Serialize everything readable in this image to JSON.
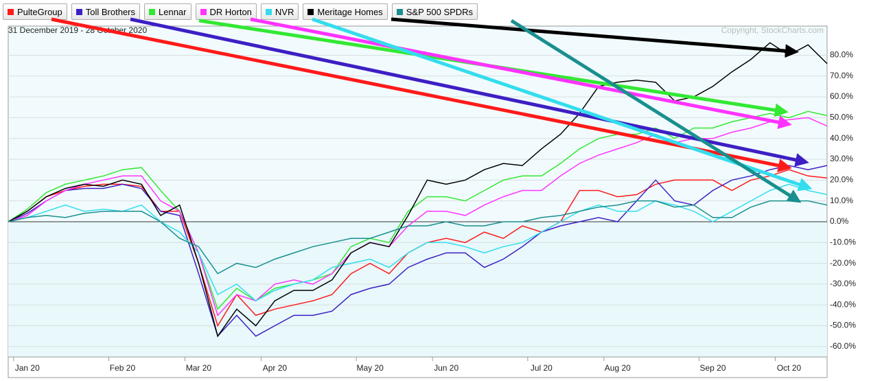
{
  "chart_data": {
    "type": "line",
    "subtitle": "31 December 2019 - 28 October 2020",
    "annotations": [
      "Copyright, StockCharts.com"
    ],
    "categories": [
      null,
      "Jan 20",
      null,
      null,
      null,
      null,
      "Feb 20",
      null,
      null,
      null,
      "Mar 20",
      null,
      null,
      null,
      "Apr 20",
      null,
      null,
      null,
      null,
      "May 20",
      null,
      null,
      null,
      "Jun 20",
      null,
      null,
      null,
      null,
      "Jul 20",
      null,
      null,
      null,
      "Aug 20",
      null,
      null,
      null,
      null,
      "Sep 20",
      null,
      null,
      null,
      "Oct 20",
      null,
      null
    ],
    "series": [
      {
        "name": "PulteGroup",
        "color": "#ff1a1a",
        "values": [
          0,
          5,
          12,
          15,
          17,
          18,
          18,
          17,
          5,
          5,
          -20,
          -50,
          -35,
          -45,
          -42,
          -40,
          -38,
          -35,
          -25,
          -20,
          -25,
          -15,
          -10,
          -8,
          -10,
          -5,
          -8,
          -2,
          -5,
          0,
          15,
          15,
          12,
          13,
          18,
          20,
          20,
          20,
          15,
          20,
          22,
          25,
          22,
          21
        ]
      },
      {
        "name": "Toll Brothers",
        "color": "#3d1fc4",
        "values": [
          0,
          4,
          10,
          15,
          16,
          16,
          18,
          16,
          5,
          3,
          -25,
          -55,
          -45,
          -55,
          -50,
          -45,
          -45,
          -43,
          -35,
          -32,
          -30,
          -22,
          -18,
          -15,
          -15,
          -22,
          -18,
          -12,
          -5,
          -2,
          0,
          2,
          0,
          10,
          20,
          10,
          8,
          15,
          20,
          22,
          25,
          27,
          25,
          27
        ]
      },
      {
        "name": "Lennar",
        "color": "#33e833",
        "values": [
          0,
          6,
          14,
          18,
          20,
          22,
          25,
          26,
          15,
          5,
          -15,
          -42,
          -32,
          -38,
          -32,
          -30,
          -28,
          -25,
          -12,
          -8,
          -10,
          5,
          12,
          12,
          10,
          15,
          20,
          22,
          22,
          28,
          35,
          40,
          42,
          42,
          45,
          40,
          45,
          45,
          48,
          50,
          52,
          50,
          53,
          51
        ]
      },
      {
        "name": "DR Horton",
        "color": "#ff33ff",
        "values": [
          0,
          3,
          10,
          15,
          18,
          20,
          22,
          22,
          10,
          5,
          -15,
          -45,
          -35,
          -38,
          -30,
          -28,
          -30,
          -25,
          -15,
          -10,
          -12,
          -2,
          5,
          5,
          3,
          8,
          12,
          15,
          15,
          22,
          28,
          32,
          35,
          38,
          42,
          38,
          40,
          40,
          43,
          45,
          48,
          49,
          50,
          46
        ]
      },
      {
        "name": "NVR",
        "color": "#33dded",
        "values": [
          0,
          2,
          5,
          8,
          5,
          6,
          5,
          8,
          0,
          -5,
          -15,
          -35,
          -30,
          -38,
          -33,
          -30,
          -28,
          -22,
          -20,
          -18,
          -22,
          -15,
          -10,
          -10,
          -12,
          -15,
          -12,
          -10,
          -5,
          0,
          5,
          8,
          5,
          5,
          10,
          8,
          5,
          0,
          5,
          10,
          15,
          18,
          15,
          13
        ]
      },
      {
        "name": "Meritage Homes",
        "color": "#000000",
        "values": [
          0,
          5,
          12,
          16,
          18,
          17,
          20,
          18,
          3,
          8,
          -20,
          -55,
          -42,
          -50,
          -38,
          -33,
          -33,
          -28,
          -15,
          -10,
          -12,
          3,
          20,
          18,
          20,
          25,
          28,
          27,
          35,
          42,
          52,
          65,
          67,
          68,
          67,
          58,
          60,
          65,
          72,
          78,
          86,
          80,
          85,
          76
        ]
      },
      {
        "name": "S&P 500 SPDRs",
        "color": "#1a8f8f",
        "values": [
          0,
          2,
          3,
          2,
          4,
          5,
          5,
          5,
          0,
          -8,
          -12,
          -25,
          -20,
          -22,
          -18,
          -15,
          -12,
          -10,
          -8,
          -8,
          -5,
          -2,
          -2,
          0,
          -2,
          -2,
          0,
          0,
          2,
          3,
          5,
          7,
          8,
          10,
          10,
          7,
          8,
          2,
          2,
          7,
          10,
          10,
          10,
          8
        ]
      }
    ],
    "ylim": [
      -65,
      94
    ],
    "yticks": [
      {
        "value": -60,
        "label": "-60.0%"
      },
      {
        "value": -50,
        "label": "-50.0%"
      },
      {
        "value": -40,
        "label": "-40.0%"
      },
      {
        "value": -30,
        "label": "-30.0%"
      },
      {
        "value": -20,
        "label": "-20.0%"
      },
      {
        "value": -10,
        "label": "-10.0%"
      },
      {
        "value": 0,
        "label": "0.0%"
      },
      {
        "value": 10,
        "label": "10.0%"
      },
      {
        "value": 20,
        "label": "20.0%"
      },
      {
        "value": 30,
        "label": "30.0%"
      },
      {
        "value": 40,
        "label": "40.0%"
      },
      {
        "value": 50,
        "label": "50.0%"
      },
      {
        "value": 60,
        "label": "60.0%"
      },
      {
        "value": 70,
        "label": "70.0%"
      },
      {
        "value": 80,
        "label": "80.0%"
      }
    ],
    "grid": true
  }
}
